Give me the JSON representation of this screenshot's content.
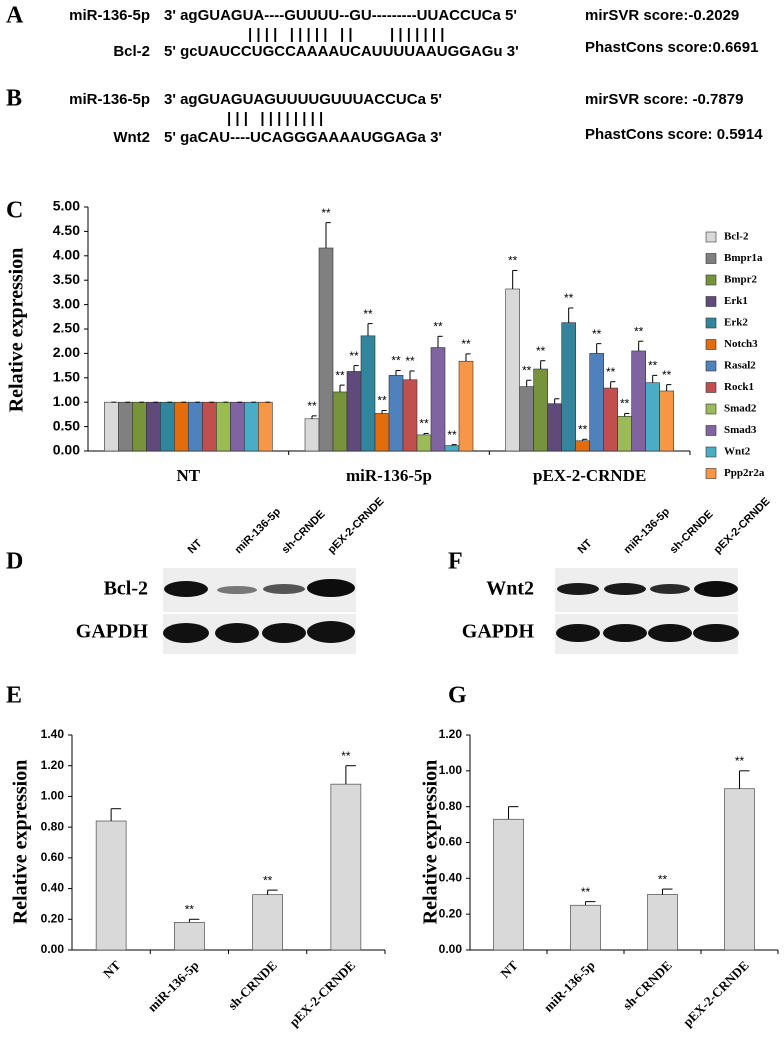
{
  "alignments": [
    {
      "label": "A",
      "mirna_name": "miR-136-5p",
      "mirna_seq": "3' agGUAGUA----GUUUU--GU---------UUACCUCa 5'",
      "pairing": "| | | |   | | | | |   | |         | | | | | | |",
      "target_name": "Bcl-2",
      "target_seq": "5' gcUAUCCUGCCAAAAUCAUUUUAAUGGAGu 3'",
      "scores": [
        "mirSVR score:-0.2029",
        "PhastCons score:0.6691"
      ]
    },
    {
      "label": "B",
      "mirna_name": "miR-136-5p",
      "mirna_seq": "3' agGUAGUAGUUUUGUUUACCUCa 5'",
      "pairing": "| | |   | | | | | | | |",
      "target_name": "Wnt2",
      "target_seq": "5' gaCAU----UCAGGGAAAAUGGAGa 3'",
      "scores": [
        "mirSVR score: -0.7879",
        "PhastCons score: 0.5914"
      ]
    }
  ],
  "blots": [
    {
      "label": "D",
      "lanes": [
        "NT",
        "miR-136-5p",
        "sh-CRNDE",
        "pEX-2-CRNDE"
      ],
      "rows": [
        "Bcl-2",
        "GAPDH"
      ]
    },
    {
      "label": "F",
      "lanes": [
        "NT",
        "miR-136-5p",
        "sh-CRNDE",
        "pEX-2-CRNDE"
      ],
      "rows": [
        "Wnt2",
        "GAPDH"
      ]
    }
  ],
  "chart_data": [
    {
      "type": "bar",
      "panel_label": "C",
      "y_label": "Relative expression",
      "categories": [
        "NT",
        "miR-136-5p",
        "pEX-2-CRNDE"
      ],
      "ylim": [
        0,
        5
      ],
      "yticks": [
        {
          "value": 0,
          "label": "0.00"
        },
        {
          "value": 0.5,
          "label": "0.50"
        },
        {
          "value": 1,
          "label": "1.00"
        },
        {
          "value": 1.5,
          "label": "1.50"
        },
        {
          "value": 2,
          "label": "2.00"
        },
        {
          "value": 2.5,
          "label": "2.50"
        },
        {
          "value": 3,
          "label": "3.00"
        },
        {
          "value": 3.5,
          "label": "3.50"
        },
        {
          "value": 4,
          "label": "4.00"
        },
        {
          "value": 4.5,
          "label": "4.50"
        },
        {
          "value": 5,
          "label": "5.00"
        }
      ],
      "legend": "right",
      "series": [
        {
          "name": "Bcl-2",
          "color": "#d9d9d9",
          "values": [
            1,
            0.66,
            3.32
          ],
          "errors": [
            0,
            0.06,
            0.38
          ],
          "significance": [
            null,
            "**",
            "**"
          ]
        },
        {
          "name": "Bmpr1a",
          "color": "#808080",
          "values": [
            1,
            4.16,
            1.32
          ],
          "errors": [
            0,
            0.52,
            0.13
          ],
          "significance": [
            null,
            "**",
            "**"
          ]
        },
        {
          "name": "Bmpr2",
          "color": "#77933c",
          "values": [
            1,
            1.21,
            1.68
          ],
          "errors": [
            0,
            0.14,
            0.17
          ],
          "significance": [
            null,
            "**",
            "**"
          ]
        },
        {
          "name": "Erk1",
          "color": "#604a7b",
          "values": [
            1,
            1.63,
            0.97
          ],
          "errors": [
            0,
            0.12,
            0.1
          ],
          "significance": [
            null,
            "**",
            null
          ]
        },
        {
          "name": "Erk2",
          "color": "#31859c",
          "values": [
            1,
            2.36,
            2.63
          ],
          "errors": [
            0,
            0.25,
            0.3
          ],
          "significance": [
            null,
            "**",
            "**"
          ]
        },
        {
          "name": "Notch3",
          "color": "#e46c0a",
          "values": [
            1,
            0.77,
            0.21
          ],
          "errors": [
            0,
            0.06,
            0.03
          ],
          "significance": [
            null,
            "**",
            "**"
          ]
        },
        {
          "name": "Rasal2",
          "color": "#4f81bd",
          "values": [
            1,
            1.55,
            2.0
          ],
          "errors": [
            0,
            0.1,
            0.2
          ],
          "significance": [
            null,
            "**",
            "**"
          ]
        },
        {
          "name": "Rock1",
          "color": "#c0504d",
          "values": [
            1,
            1.46,
            1.29
          ],
          "errors": [
            0,
            0.18,
            0.13
          ],
          "significance": [
            null,
            "**",
            "**"
          ]
        },
        {
          "name": "Smad2",
          "color": "#9bbb59",
          "values": [
            1,
            0.33,
            0.71
          ],
          "errors": [
            0,
            0.03,
            0.06
          ],
          "significance": [
            null,
            "**",
            "**"
          ]
        },
        {
          "name": "Smad3",
          "color": "#8064a2",
          "values": [
            1,
            2.12,
            2.05
          ],
          "errors": [
            0,
            0.23,
            0.2
          ],
          "significance": [
            null,
            "**",
            "**"
          ]
        },
        {
          "name": "Wnt2",
          "color": "#4bacc6",
          "values": [
            1,
            0.11,
            1.4
          ],
          "errors": [
            0,
            0.02,
            0.15
          ],
          "significance": [
            null,
            "**",
            "**"
          ]
        },
        {
          "name": "Ppp2r2a",
          "color": "#f79646",
          "values": [
            1,
            1.84,
            1.23
          ],
          "errors": [
            0,
            0.15,
            0.13
          ],
          "significance": [
            null,
            "**",
            "**"
          ]
        }
      ]
    },
    {
      "type": "bar",
      "panel_label": "E",
      "y_label": "Relative expression",
      "categories": [
        "NT",
        "miR-136-5p",
        "sh-CRNDE",
        "pEX-2-CRNDE"
      ],
      "values": [
        0.84,
        0.18,
        0.36,
        1.08
      ],
      "errors": [
        0.08,
        0.02,
        0.03,
        0.12
      ],
      "significance": [
        null,
        "**",
        "**",
        "**"
      ],
      "color": "#d9d9d9",
      "ylim": [
        0,
        1.4
      ],
      "yticks": [
        {
          "value": 0,
          "label": "0.00"
        },
        {
          "value": 0.2,
          "label": "0.20"
        },
        {
          "value": 0.4,
          "label": "0.40"
        },
        {
          "value": 0.6,
          "label": "0.60"
        },
        {
          "value": 0.8,
          "label": "0.80"
        },
        {
          "value": 1,
          "label": "1.00"
        },
        {
          "value": 1.2,
          "label": "1.20"
        },
        {
          "value": 1.4,
          "label": "1.40"
        }
      ]
    },
    {
      "type": "bar",
      "panel_label": "G",
      "y_label": "Relative expression",
      "categories": [
        "NT",
        "miR-136-5p",
        "sh-CRNDE",
        "pEX-2-CRNDE"
      ],
      "values": [
        0.73,
        0.25,
        0.31,
        0.9
      ],
      "errors": [
        0.07,
        0.02,
        0.03,
        0.1
      ],
      "significance": [
        null,
        "**",
        "**",
        "**"
      ],
      "color": "#d9d9d9",
      "ylim": [
        0,
        1.2
      ],
      "yticks": [
        {
          "value": 0,
          "label": "0.00"
        },
        {
          "value": 0.2,
          "label": "0.20"
        },
        {
          "value": 0.4,
          "label": "0.40"
        },
        {
          "value": 0.6,
          "label": "0.60"
        },
        {
          "value": 0.8,
          "label": "0.80"
        },
        {
          "value": 1,
          "label": "1.00"
        },
        {
          "value": 1.2,
          "label": "1.20"
        }
      ]
    }
  ]
}
